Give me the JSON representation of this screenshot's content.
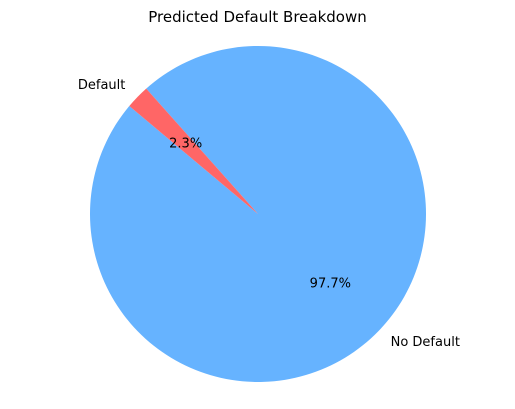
{
  "chart_data": {
    "type": "pie",
    "title": "Predicted Default Breakdown",
    "slices": [
      {
        "label": "No Default",
        "value": 97.7,
        "pct_label": "97.7%",
        "color": "#66b3ff"
      },
      {
        "label": "Default",
        "value": 2.3,
        "pct_label": "2.3%",
        "color": "#ff6666"
      }
    ],
    "start_angle": 140,
    "direction": "counterclockwise",
    "legend": "none"
  }
}
